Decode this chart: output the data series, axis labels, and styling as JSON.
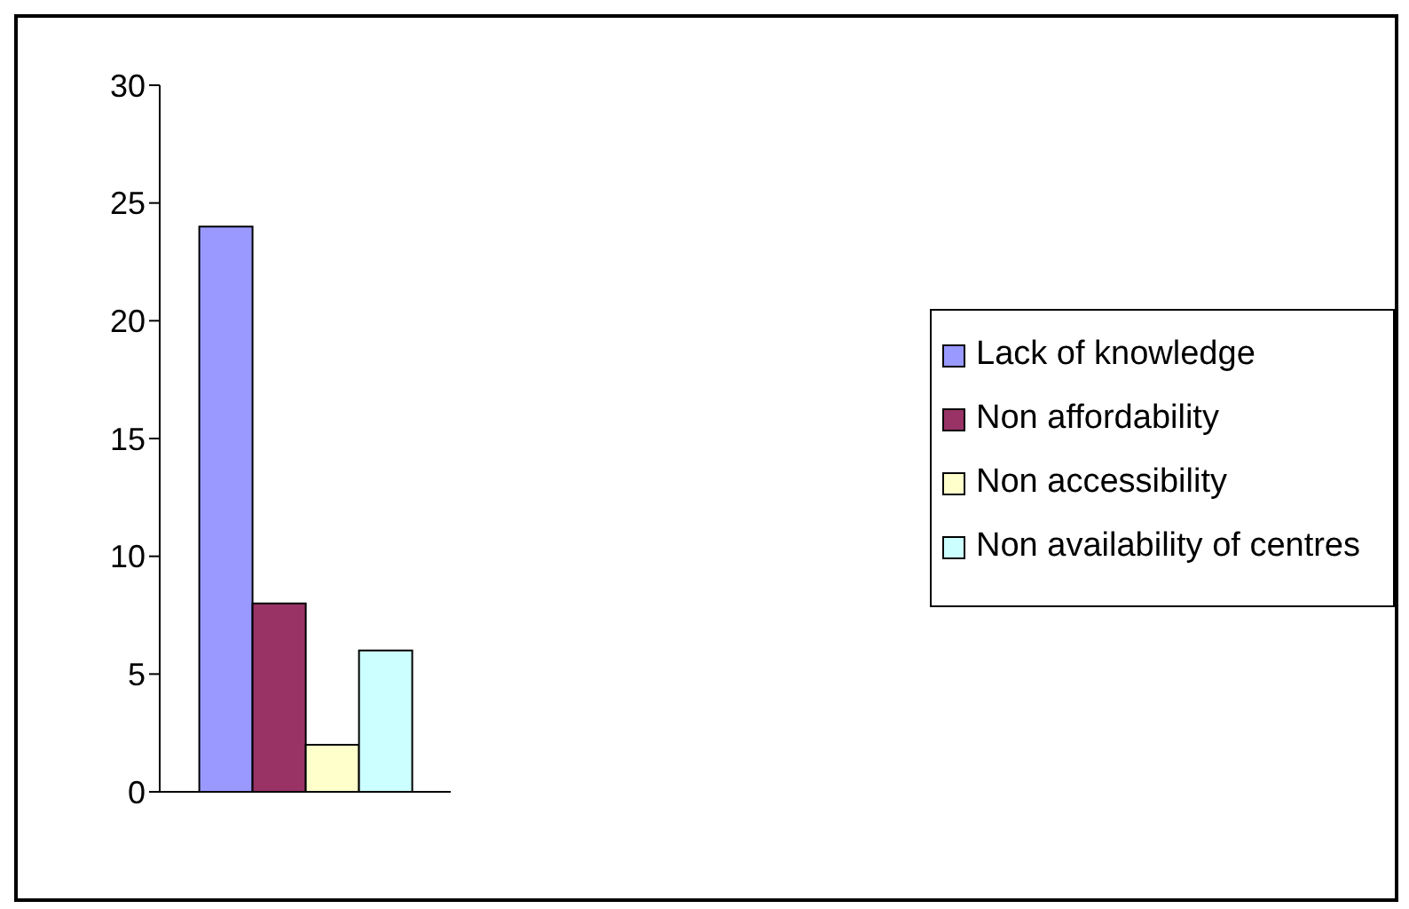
{
  "chart_data": {
    "type": "bar",
    "categories": [
      null
    ],
    "series": [
      {
        "name": "Lack of knowledge",
        "color": "#9999ff",
        "values": [
          24
        ]
      },
      {
        "name": "Non affordability",
        "color": "#993366",
        "values": [
          8
        ]
      },
      {
        "name": "Non accessibility",
        "color": "#ffffcc",
        "values": [
          2
        ]
      },
      {
        "name": "Non availability of centres",
        "color": "#ccffff",
        "values": [
          6
        ]
      }
    ],
    "ylim": [
      0,
      30
    ],
    "yticks": [
      0,
      5,
      10,
      15,
      20,
      25,
      30
    ],
    "grid": false,
    "legend": "right"
  }
}
